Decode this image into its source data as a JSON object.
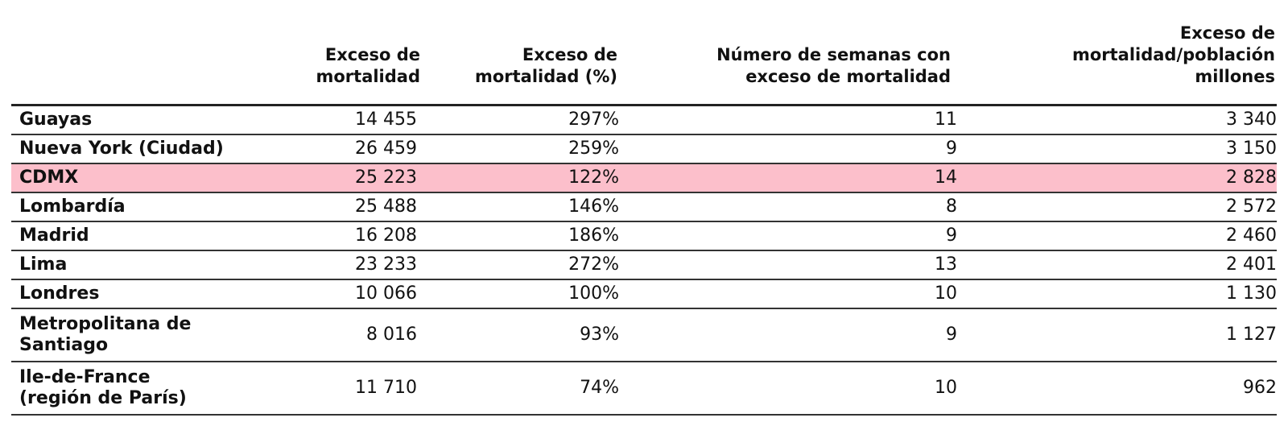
{
  "table": {
    "headers": [
      "",
      "Exceso de mortalidad",
      "Exceso de mortalidad (%)",
      "Número de semanas con exceso de mortalidad",
      "Exceso de mortalidad/población millones"
    ],
    "header_lines": {
      "h1": [
        "Exceso de",
        "mortalidad"
      ],
      "h2": [
        "Exceso de",
        "mortalidad (%)"
      ],
      "h3": [
        "Número de semanas con",
        "exceso de mortalidad"
      ],
      "h4": [
        "Exceso de",
        "mortalidad/población",
        "millones"
      ]
    },
    "highlight_color": "#fcbfcb",
    "rows": [
      {
        "name": "Guayas",
        "exceso": "14 455",
        "pct": "297%",
        "semanas": "11",
        "por_millon": "3 340"
      },
      {
        "name": "Nueva York (Ciudad)",
        "exceso": "26 459",
        "pct": "259%",
        "semanas": "9",
        "por_millon": "3 150"
      },
      {
        "name": "CDMX",
        "exceso": "25 223",
        "pct": "122%",
        "semanas": "14",
        "por_millon": "2 828",
        "highlighted": true
      },
      {
        "name": "Lombardía",
        "exceso": "25 488",
        "pct": "146%",
        "semanas": "8",
        "por_millon": "2 572"
      },
      {
        "name": "Madrid",
        "exceso": "16 208",
        "pct": "186%",
        "semanas": "9",
        "por_millon": "2 460"
      },
      {
        "name": "Lima",
        "exceso": "23 233",
        "pct": "272%",
        "semanas": "13",
        "por_millon": "2 401"
      },
      {
        "name": "Londres",
        "exceso": "10 066",
        "pct": "100%",
        "semanas": "10",
        "por_millon": "1 130"
      },
      {
        "name_lines": [
          "Metropolitana de",
          "Santiago"
        ],
        "name": "Metropolitana de Santiago",
        "exceso": "8 016",
        "pct": "93%",
        "semanas": "9",
        "por_millon": "1 127"
      },
      {
        "name_lines": [
          "Ile-de-France",
          "(región de París)"
        ],
        "name": "Ile-de-France (región de París)",
        "exceso": "11 710",
        "pct": "74%",
        "semanas": "10",
        "por_millon": "962"
      }
    ]
  }
}
